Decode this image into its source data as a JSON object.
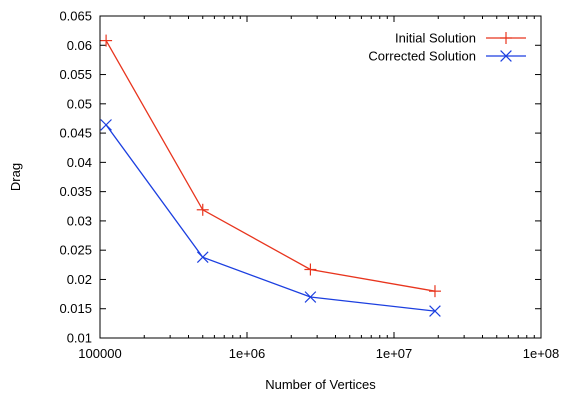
{
  "chart_data": {
    "type": "line",
    "title": "",
    "xlabel": "Number of Vertices",
    "ylabel": "Drag",
    "xscale": "log",
    "xlim": [
      100000,
      100000000
    ],
    "ylim": [
      0.01,
      0.065
    ],
    "x_ticks": [
      {
        "value": 100000,
        "label": "100000"
      },
      {
        "value": 1000000,
        "label": "1e+06"
      },
      {
        "value": 10000000,
        "label": "1e+07"
      },
      {
        "value": 100000000,
        "label": "1e+08"
      }
    ],
    "y_ticks": [
      {
        "value": 0.01,
        "label": "0.01"
      },
      {
        "value": 0.015,
        "label": "0.015"
      },
      {
        "value": 0.02,
        "label": "0.02"
      },
      {
        "value": 0.025,
        "label": "0.025"
      },
      {
        "value": 0.03,
        "label": "0.03"
      },
      {
        "value": 0.035,
        "label": "0.035"
      },
      {
        "value": 0.04,
        "label": "0.04"
      },
      {
        "value": 0.045,
        "label": "0.045"
      },
      {
        "value": 0.05,
        "label": "0.05"
      },
      {
        "value": 0.055,
        "label": "0.055"
      },
      {
        "value": 0.06,
        "label": "0.06"
      },
      {
        "value": 0.065,
        "label": "0.065"
      }
    ],
    "grid": false,
    "legend_position": "top-right",
    "series": [
      {
        "name": "Initial Solution",
        "color": "#e8351e",
        "marker": "plus",
        "points": [
          {
            "x": 110000,
            "y": 0.0608
          },
          {
            "x": 500000,
            "y": 0.0319
          },
          {
            "x": 2700000,
            "y": 0.0217
          },
          {
            "x": 19000000,
            "y": 0.018
          }
        ]
      },
      {
        "name": "Corrected Solution",
        "color": "#1c3fe0",
        "marker": "cross",
        "points": [
          {
            "x": 110000,
            "y": 0.0464
          },
          {
            "x": 500000,
            "y": 0.0238
          },
          {
            "x": 2700000,
            "y": 0.017
          },
          {
            "x": 19000000,
            "y": 0.0146
          }
        ]
      }
    ]
  }
}
